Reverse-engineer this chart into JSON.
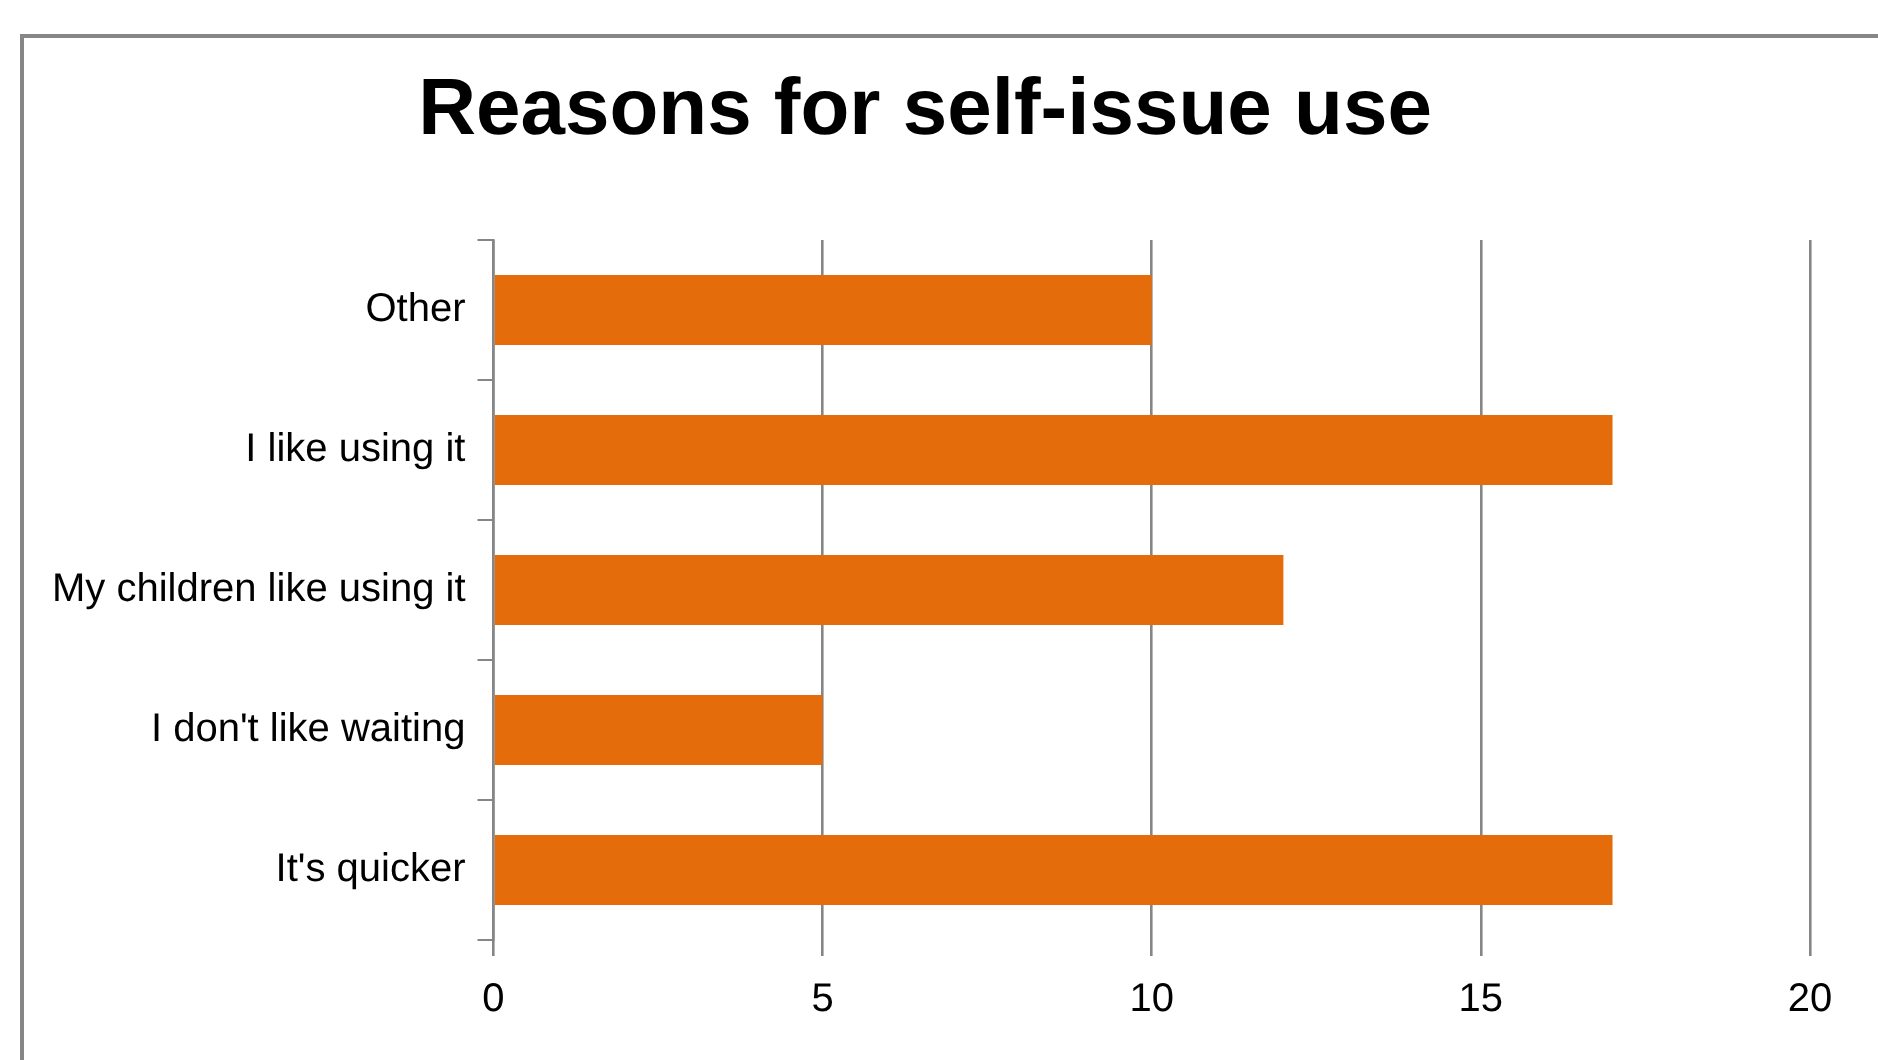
{
  "chart_data": {
    "type": "bar",
    "orientation": "horizontal",
    "title": "Reasons for self-issue use",
    "categories": [
      "Other",
      "I like using it",
      "My children like using it",
      "I don't like waiting",
      "It's quicker"
    ],
    "values": [
      10,
      17,
      12,
      5,
      17
    ],
    "color": "#e46c0a",
    "xlim": [
      0,
      20
    ],
    "xticks": [
      0,
      5,
      10,
      15,
      20
    ],
    "grid": "x",
    "legend": false
  }
}
